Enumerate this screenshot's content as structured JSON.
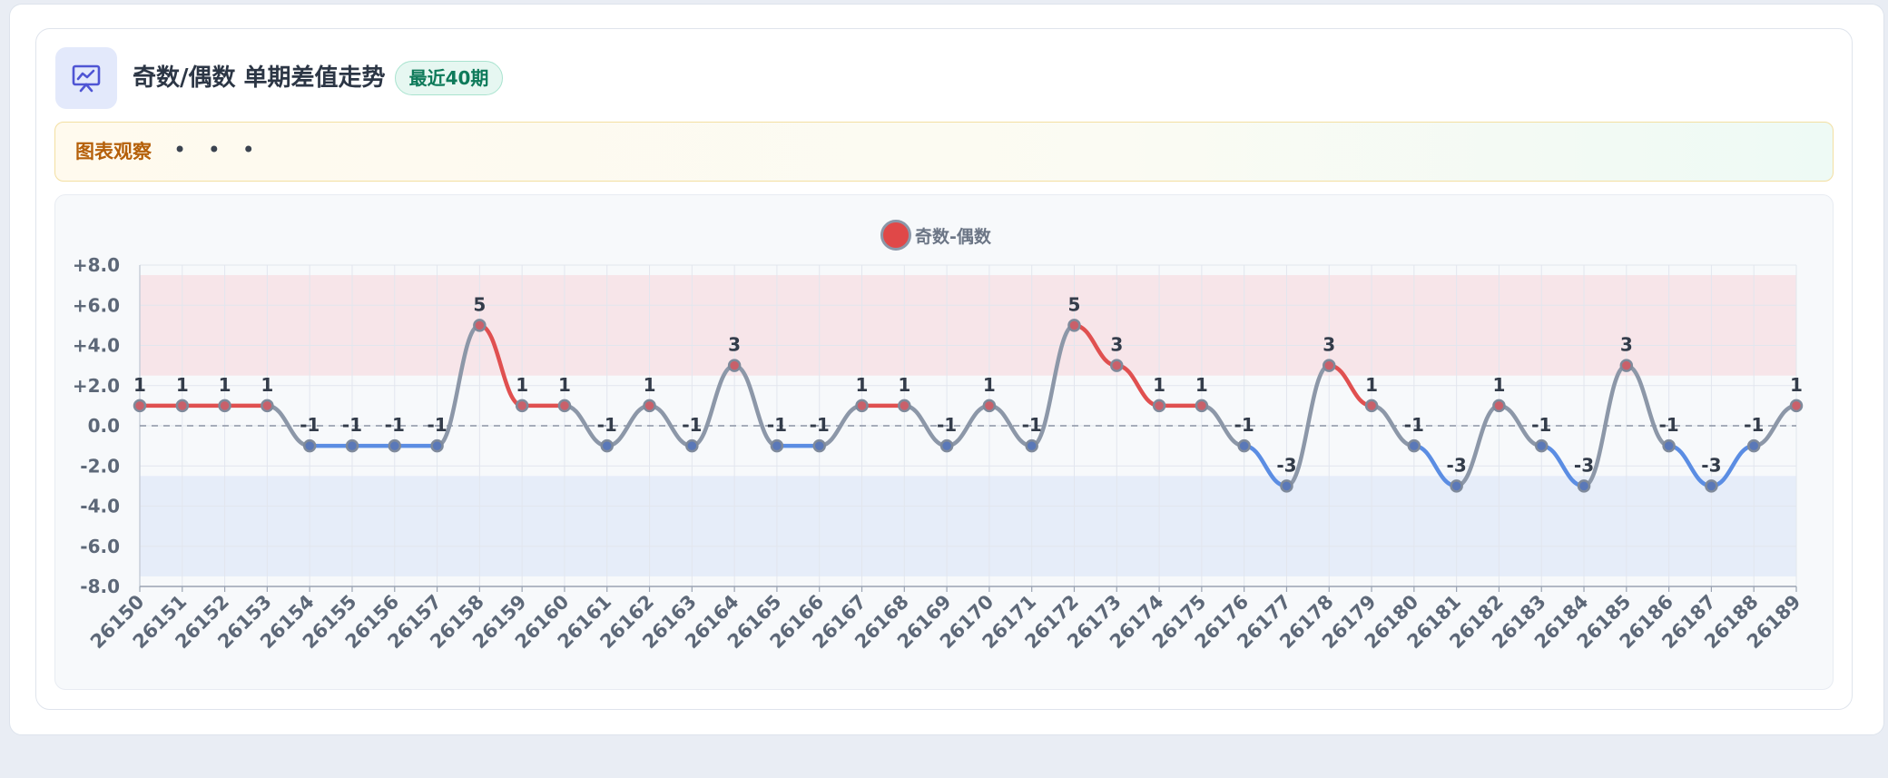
{
  "header": {
    "title": "奇数/偶数 单期差值走势",
    "badge": "最近40期",
    "icon": "chart-presentation-icon"
  },
  "observation": {
    "label": "图表观察",
    "dots": "• • •"
  },
  "colors": {
    "positive": "#e05050",
    "negative": "#5b8de3",
    "neutral": "#8c97a8",
    "upper_band": "#f7e5e9",
    "lower_band": "#e6edf9",
    "accent": "#5a63d8"
  },
  "chart_data": {
    "type": "line",
    "legend": "top-center",
    "x": [
      "26150",
      "26151",
      "26152",
      "26153",
      "26154",
      "26155",
      "26156",
      "26157",
      "26158",
      "26159",
      "26160",
      "26161",
      "26162",
      "26163",
      "26164",
      "26165",
      "26166",
      "26167",
      "26168",
      "26169",
      "26170",
      "26171",
      "26172",
      "26173",
      "26174",
      "26175",
      "26176",
      "26177",
      "26178",
      "26179",
      "26180",
      "26181",
      "26182",
      "26183",
      "26184",
      "26185",
      "26186",
      "26187",
      "26188",
      "26189"
    ],
    "series": [
      {
        "name": "奇数-偶数",
        "values": [
          1,
          1,
          1,
          1,
          -1,
          -1,
          -1,
          -1,
          5,
          1,
          1,
          -1,
          1,
          -1,
          3,
          -1,
          -1,
          1,
          1,
          -1,
          1,
          -1,
          5,
          3,
          1,
          1,
          -1,
          -3,
          3,
          1,
          -1,
          -3,
          1,
          -1,
          -3,
          3,
          -1,
          -3,
          -1,
          1
        ]
      }
    ],
    "ylim": [
      -8,
      8
    ],
    "yticks": [
      "+8.0",
      "+6.0",
      "+4.0",
      "+2.0",
      "0.0",
      "-2.0",
      "-4.0",
      "-6.0",
      "-8.0"
    ],
    "ytick_values": [
      8,
      6,
      4,
      2,
      0,
      -2,
      -4,
      -6,
      -8
    ],
    "bands": [
      {
        "from": 2.5,
        "to": 7.5,
        "color": "upper"
      },
      {
        "from": -7.5,
        "to": -2.5,
        "color": "lower"
      }
    ],
    "reference_line": 0,
    "grid": true
  }
}
